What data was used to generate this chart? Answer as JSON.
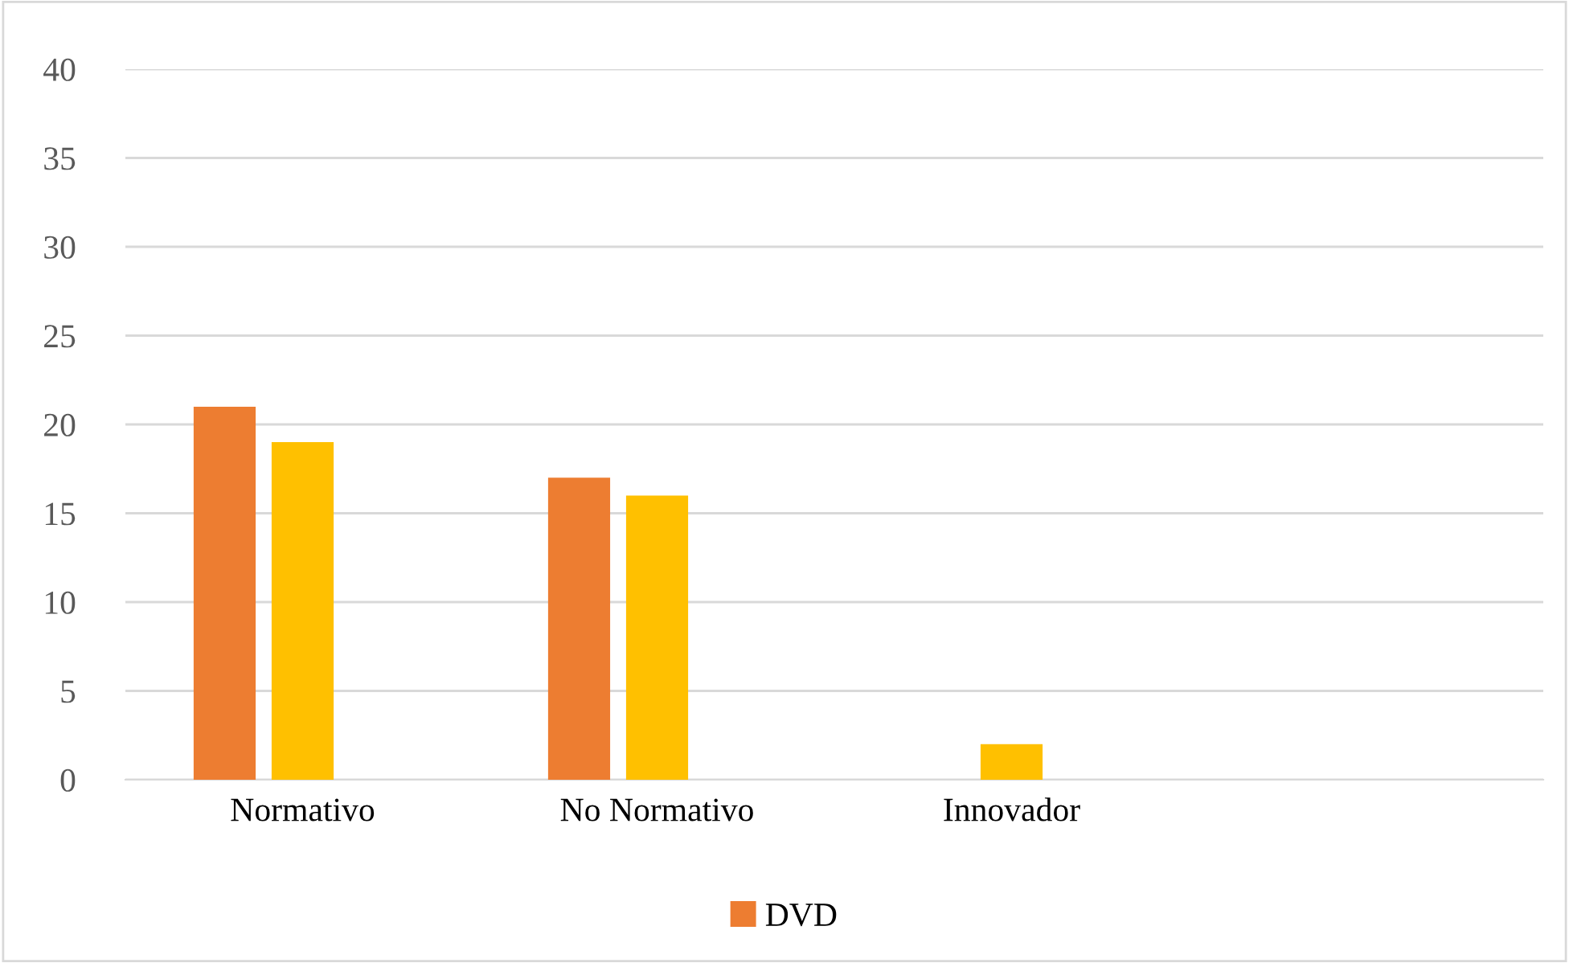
{
  "chart_data": {
    "type": "bar",
    "categories": [
      "Normativo",
      "No Normativo",
      "Innovador",
      null
    ],
    "series": [
      {
        "name": "DVD",
        "color": "#ed7d31",
        "values": [
          21,
          17,
          0,
          null
        ]
      },
      {
        "color": "#ffc000",
        "values": [
          19,
          16,
          2,
          null
        ]
      }
    ],
    "ylim": [
      0,
      40
    ],
    "yticks": [
      0,
      5,
      10,
      15,
      20,
      25,
      30,
      35,
      40
    ],
    "grid": "y",
    "legend": "bottom"
  }
}
